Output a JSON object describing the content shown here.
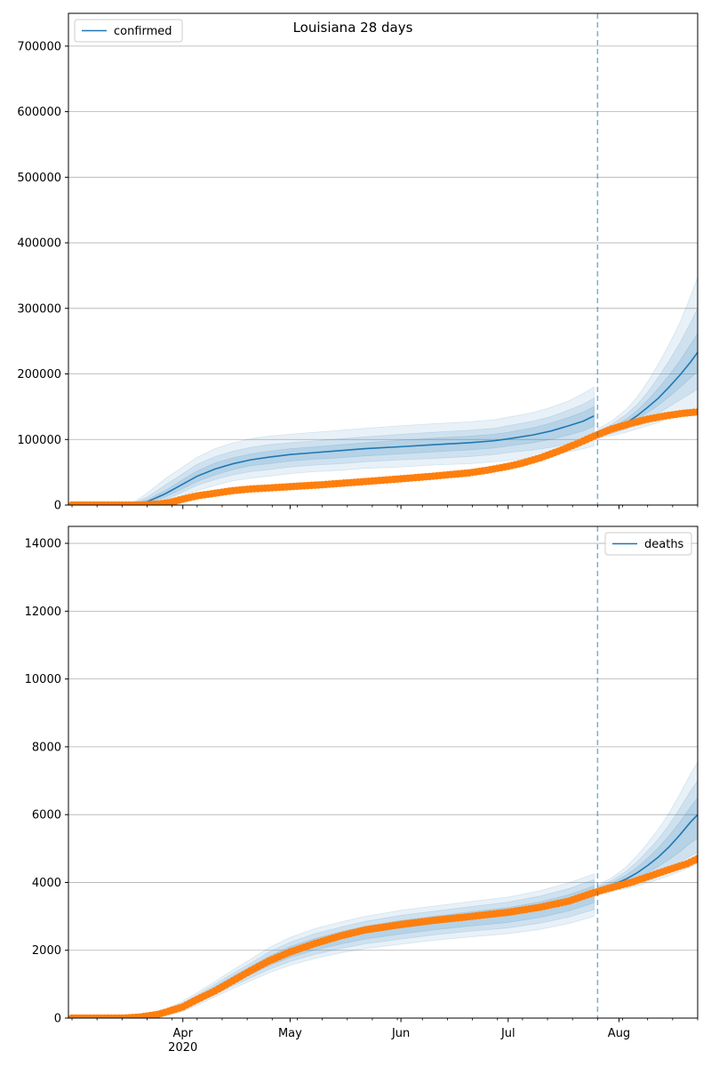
{
  "chart_data": [
    {
      "type": "line",
      "title": "Louisiana 28 days",
      "legend": {
        "label": "confirmed",
        "placement": "top-left"
      },
      "ylim": [
        0,
        750000
      ],
      "yticks": [
        0,
        100000,
        200000,
        300000,
        400000,
        500000,
        600000,
        700000
      ],
      "xlim": [
        "2020-02-29",
        "2020-08-23"
      ],
      "xticks": [
        {
          "date": "2020-04-01",
          "label": "",
          "year_label": ""
        },
        {
          "date": "2020-05-01",
          "label": ""
        },
        {
          "date": "2020-06-01",
          "label": ""
        },
        {
          "date": "2020-07-01",
          "label": ""
        },
        {
          "date": "2020-08-01",
          "label": ""
        }
      ],
      "forecast_start": "2020-07-26",
      "grid": "y",
      "colors": {
        "model": "#1f77b4",
        "observed": "#ff7f0e",
        "band": "#1f77b4"
      },
      "model_fit": {
        "x": [
          "2020-03-01",
          "2020-03-10",
          "2020-03-17",
          "2020-03-22",
          "2020-03-27",
          "2020-04-01",
          "2020-04-05",
          "2020-04-10",
          "2020-04-15",
          "2020-04-20",
          "2020-04-25",
          "2020-05-01",
          "2020-05-08",
          "2020-05-15",
          "2020-05-22",
          "2020-06-01",
          "2020-06-10",
          "2020-06-20",
          "2020-06-27",
          "2020-07-01",
          "2020-07-08",
          "2020-07-13",
          "2020-07-18",
          "2020-07-22",
          "2020-07-25"
        ],
        "median": [
          0,
          0,
          0,
          5000,
          17000,
          32000,
          44000,
          55000,
          63000,
          69000,
          73000,
          77000,
          80000,
          83000,
          86000,
          89000,
          92000,
          95000,
          98000,
          101000,
          107000,
          113000,
          121000,
          128000,
          136000
        ],
        "inner_band": [
          [
            0,
            0
          ],
          [
            0,
            0
          ],
          [
            0,
            0
          ],
          [
            3000,
            8000
          ],
          [
            12000,
            22000
          ],
          [
            25000,
            39000
          ],
          [
            36000,
            52000
          ],
          [
            46000,
            64000
          ],
          [
            54000,
            72000
          ],
          [
            60000,
            78000
          ],
          [
            63000,
            82000
          ],
          [
            67000,
            86000
          ],
          [
            70000,
            89000
          ],
          [
            72000,
            92000
          ],
          [
            75000,
            95000
          ],
          [
            78000,
            99000
          ],
          [
            81000,
            102000
          ],
          [
            84000,
            105000
          ],
          [
            87000,
            108000
          ],
          [
            90000,
            111000
          ],
          [
            95000,
            118000
          ],
          [
            100000,
            125000
          ],
          [
            107000,
            134000
          ],
          [
            113000,
            142000
          ],
          [
            120000,
            150000
          ]
        ],
        "mid_band": [
          [
            0,
            0
          ],
          [
            0,
            0
          ],
          [
            0,
            0
          ],
          [
            1000,
            12000
          ],
          [
            8000,
            30000
          ],
          [
            20000,
            48000
          ],
          [
            30000,
            62000
          ],
          [
            39000,
            74000
          ],
          [
            46000,
            82000
          ],
          [
            51000,
            88000
          ],
          [
            54000,
            92000
          ],
          [
            58000,
            95000
          ],
          [
            61000,
            98000
          ],
          [
            63000,
            101000
          ],
          [
            66000,
            104000
          ],
          [
            69000,
            108000
          ],
          [
            71000,
            111000
          ],
          [
            74000,
            114000
          ],
          [
            77000,
            117000
          ],
          [
            80000,
            121000
          ],
          [
            84000,
            128000
          ],
          [
            88000,
            135000
          ],
          [
            94000,
            145000
          ],
          [
            100000,
            154000
          ],
          [
            105000,
            163000
          ]
        ],
        "outer_band": [
          [
            0,
            0
          ],
          [
            0,
            0
          ],
          [
            0,
            0
          ],
          [
            0,
            18000
          ],
          [
            4000,
            40000
          ],
          [
            14000,
            58000
          ],
          [
            22000,
            73000
          ],
          [
            30000,
            86000
          ],
          [
            37000,
            95000
          ],
          [
            41000,
            101000
          ],
          [
            44000,
            105000
          ],
          [
            48000,
            108000
          ],
          [
            51000,
            111000
          ],
          [
            53000,
            114000
          ],
          [
            56000,
            117000
          ],
          [
            58000,
            121000
          ],
          [
            61000,
            124000
          ],
          [
            63000,
            127000
          ],
          [
            66000,
            130000
          ],
          [
            68000,
            134000
          ],
          [
            72000,
            141000
          ],
          [
            76000,
            149000
          ],
          [
            81000,
            159000
          ],
          [
            86000,
            170000
          ],
          [
            90000,
            180000
          ]
        ]
      },
      "model_forecast": {
        "x": [
          "2020-07-26",
          "2020-07-30",
          "2020-08-03",
          "2020-08-06",
          "2020-08-09",
          "2020-08-12",
          "2020-08-15",
          "2020-08-18",
          "2020-08-21",
          "2020-08-23"
        ],
        "median": [
          108000,
          115000,
          125000,
          136000,
          149000,
          163000,
          180000,
          198000,
          218000,
          233000
        ],
        "inner_band": [
          [
            106000,
            111000
          ],
          [
            112000,
            119000
          ],
          [
            121000,
            131000
          ],
          [
            130000,
            144000
          ],
          [
            141000,
            160000
          ],
          [
            152000,
            178000
          ],
          [
            165000,
            198000
          ],
          [
            179000,
            220000
          ],
          [
            194000,
            245000
          ],
          [
            204000,
            262000
          ]
        ],
        "mid_band": [
          [
            104000,
            113000
          ],
          [
            109000,
            123000
          ],
          [
            116000,
            138000
          ],
          [
            123000,
            153000
          ],
          [
            131000,
            172000
          ],
          [
            140000,
            195000
          ],
          [
            150000,
            220000
          ],
          [
            160000,
            247000
          ],
          [
            170000,
            278000
          ],
          [
            177000,
            300000
          ]
        ],
        "outer_band": [
          [
            102000,
            116000
          ],
          [
            106000,
            128000
          ],
          [
            111000,
            146000
          ],
          [
            116000,
            164000
          ],
          [
            121000,
            188000
          ],
          [
            126000,
            215000
          ],
          [
            132000,
            245000
          ],
          [
            138000,
            278000
          ],
          [
            145000,
            318000
          ],
          [
            150000,
            348000
          ]
        ]
      },
      "observed": {
        "x": [
          "2020-03-01",
          "2020-03-10",
          "2020-03-20",
          "2020-03-25",
          "2020-03-28",
          "2020-04-01",
          "2020-04-05",
          "2020-04-10",
          "2020-04-15",
          "2020-04-20",
          "2020-04-25",
          "2020-05-01",
          "2020-05-10",
          "2020-05-20",
          "2020-06-01",
          "2020-06-10",
          "2020-06-20",
          "2020-06-25",
          "2020-07-01",
          "2020-07-05",
          "2020-07-10",
          "2020-07-15",
          "2020-07-20",
          "2020-07-25",
          "2020-07-30",
          "2020-08-04",
          "2020-08-09",
          "2020-08-14",
          "2020-08-19",
          "2020-08-23"
        ],
        "values": [
          0,
          0,
          0,
          1500,
          3500,
          9000,
          14000,
          18000,
          22000,
          24500,
          26000,
          28000,
          31000,
          35000,
          40000,
          44000,
          49000,
          53000,
          59000,
          64000,
          72000,
          82000,
          93000,
          105000,
          116000,
          124000,
          131000,
          136000,
          140000,
          142000
        ]
      }
    },
    {
      "type": "line",
      "legend": {
        "label": "deaths",
        "placement": "top-right"
      },
      "ylim": [
        0,
        14500
      ],
      "yticks": [
        0,
        2000,
        4000,
        6000,
        8000,
        10000,
        12000,
        14000
      ],
      "xlim": [
        "2020-02-29",
        "2020-08-23"
      ],
      "xticks": [
        {
          "date": "2020-04-01",
          "label": "Apr",
          "year_label": "2020"
        },
        {
          "date": "2020-05-01",
          "label": "May"
        },
        {
          "date": "2020-06-01",
          "label": "Jun"
        },
        {
          "date": "2020-07-01",
          "label": "Jul"
        },
        {
          "date": "2020-08-01",
          "label": "Aug"
        }
      ],
      "forecast_start": "2020-07-26",
      "grid": "y",
      "colors": {
        "model": "#1f77b4",
        "observed": "#ff7f0e",
        "band": "#1f77b4"
      },
      "model_fit": {
        "x": [
          "2020-03-01",
          "2020-03-15",
          "2020-03-25",
          "2020-04-01",
          "2020-04-05",
          "2020-04-10",
          "2020-04-15",
          "2020-04-20",
          "2020-04-25",
          "2020-05-01",
          "2020-05-08",
          "2020-05-15",
          "2020-05-22",
          "2020-06-01",
          "2020-06-10",
          "2020-06-20",
          "2020-07-01",
          "2020-07-10",
          "2020-07-18",
          "2020-07-25"
        ],
        "median": [
          0,
          0,
          80,
          350,
          560,
          850,
          1130,
          1400,
          1680,
          1950,
          2180,
          2360,
          2520,
          2680,
          2800,
          2920,
          3040,
          3200,
          3400,
          3650
        ],
        "inner_band": [
          [
            0,
            0
          ],
          [
            0,
            0
          ],
          [
            60,
            100
          ],
          [
            300,
            400
          ],
          [
            500,
            620
          ],
          [
            770,
            930
          ],
          [
            1030,
            1230
          ],
          [
            1280,
            1520
          ],
          [
            1540,
            1820
          ],
          [
            1790,
            2110
          ],
          [
            2010,
            2350
          ],
          [
            2180,
            2540
          ],
          [
            2330,
            2710
          ],
          [
            2480,
            2880
          ],
          [
            2600,
            3000
          ],
          [
            2710,
            3130
          ],
          [
            2820,
            3260
          ],
          [
            2970,
            3430
          ],
          [
            3160,
            3640
          ],
          [
            3400,
            3900
          ]
        ],
        "mid_band": [
          [
            0,
            0
          ],
          [
            0,
            0
          ],
          [
            40,
            120
          ],
          [
            250,
            450
          ],
          [
            440,
            680
          ],
          [
            700,
            1000
          ],
          [
            950,
            1320
          ],
          [
            1190,
            1620
          ],
          [
            1430,
            1940
          ],
          [
            1670,
            2240
          ],
          [
            1880,
            2490
          ],
          [
            2050,
            2680
          ],
          [
            2190,
            2850
          ],
          [
            2330,
            3030
          ],
          [
            2450,
            3150
          ],
          [
            2560,
            3280
          ],
          [
            2660,
            3420
          ],
          [
            2800,
            3600
          ],
          [
            2980,
            3820
          ],
          [
            3200,
            4080
          ]
        ],
        "outer_band": [
          [
            0,
            0
          ],
          [
            0,
            0
          ],
          [
            20,
            150
          ],
          [
            200,
            500
          ],
          [
            380,
            750
          ],
          [
            630,
            1080
          ],
          [
            870,
            1420
          ],
          [
            1100,
            1740
          ],
          [
            1330,
            2070
          ],
          [
            1560,
            2380
          ],
          [
            1760,
            2640
          ],
          [
            1920,
            2830
          ],
          [
            2050,
            3000
          ],
          [
            2180,
            3180
          ],
          [
            2290,
            3300
          ],
          [
            2390,
            3430
          ],
          [
            2490,
            3570
          ],
          [
            2620,
            3760
          ],
          [
            2790,
            3990
          ],
          [
            3000,
            4250
          ]
        ]
      },
      "model_forecast": {
        "x": [
          "2020-07-26",
          "2020-07-30",
          "2020-08-03",
          "2020-08-06",
          "2020-08-09",
          "2020-08-12",
          "2020-08-15",
          "2020-08-18",
          "2020-08-21",
          "2020-08-23"
        ],
        "median": [
          3800,
          3920,
          4100,
          4280,
          4500,
          4750,
          5050,
          5400,
          5780,
          6000
        ],
        "inner_band": [
          [
            3760,
            3840
          ],
          [
            3850,
            3990
          ],
          [
            3990,
            4220
          ],
          [
            4130,
            4440
          ],
          [
            4290,
            4720
          ],
          [
            4470,
            5020
          ],
          [
            4670,
            5380
          ],
          [
            4900,
            5780
          ],
          [
            5160,
            6230
          ],
          [
            5300,
            6500
          ]
        ],
        "mid_band": [
          [
            3720,
            3880
          ],
          [
            3800,
            4060
          ],
          [
            3910,
            4330
          ],
          [
            4020,
            4600
          ],
          [
            4140,
            4930
          ],
          [
            4280,
            5280
          ],
          [
            4430,
            5700
          ],
          [
            4600,
            6180
          ],
          [
            4780,
            6700
          ],
          [
            4890,
            7000
          ]
        ],
        "outer_band": [
          [
            3680,
            3920
          ],
          [
            3740,
            4140
          ],
          [
            3820,
            4460
          ],
          [
            3900,
            4780
          ],
          [
            3990,
            5160
          ],
          [
            4090,
            5570
          ],
          [
            4200,
            6050
          ],
          [
            4320,
            6600
          ],
          [
            4460,
            7200
          ],
          [
            4550,
            7550
          ]
        ]
      },
      "observed": {
        "x": [
          "2020-03-01",
          "2020-03-15",
          "2020-03-20",
          "2020-03-25",
          "2020-03-28",
          "2020-04-01",
          "2020-04-05",
          "2020-04-10",
          "2020-04-15",
          "2020-04-20",
          "2020-04-25",
          "2020-05-01",
          "2020-05-08",
          "2020-05-15",
          "2020-05-22",
          "2020-06-01",
          "2020-06-10",
          "2020-06-20",
          "2020-07-01",
          "2020-07-10",
          "2020-07-18",
          "2020-07-25",
          "2020-07-30",
          "2020-08-05",
          "2020-08-10",
          "2020-08-15",
          "2020-08-20",
          "2020-08-23"
        ],
        "values": [
          0,
          0,
          30,
          110,
          200,
          330,
          550,
          800,
          1100,
          1400,
          1680,
          1950,
          2200,
          2420,
          2600,
          2760,
          2880,
          2990,
          3120,
          3270,
          3450,
          3700,
          3850,
          4020,
          4200,
          4380,
          4550,
          4700
        ]
      }
    }
  ]
}
